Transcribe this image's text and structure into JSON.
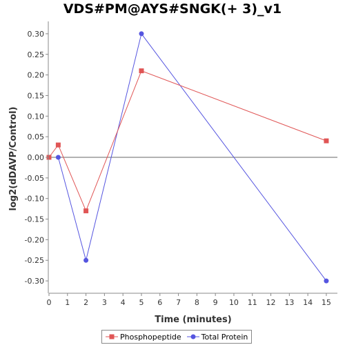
{
  "chart_data": {
    "type": "line",
    "title": "VDS#PM@AYS#SNGK(+ 3)_v1",
    "xlabel": "Time (minutes)",
    "ylabel": "log2(dDAVP/Control)",
    "xlim": [
      0,
      15.6
    ],
    "ylim": [
      -0.33,
      0.33
    ],
    "x_ticks": [
      0,
      1,
      2,
      3,
      4,
      5,
      6,
      7,
      8,
      9,
      10,
      11,
      12,
      13,
      14,
      15
    ],
    "y_ticks": [
      0.3,
      0.25,
      0.2,
      0.15,
      0.1,
      0.05,
      0.0,
      -0.05,
      -0.1,
      -0.15,
      -0.2,
      -0.25,
      -0.3
    ],
    "y_tick_labels": [
      "0.30",
      "0.25",
      "0.20",
      "0.15",
      "0.10",
      "0.05",
      "0.00",
      "-0.05",
      "-0.10",
      "-0.15",
      "-0.20",
      "-0.25",
      "-0.30"
    ],
    "grid": false,
    "zero_line": true,
    "legend_position": "bottom",
    "series": [
      {
        "name": "Phosphopeptide",
        "color": "#e05555",
        "marker": "square",
        "x": [
          0,
          0.5,
          2,
          5,
          15
        ],
        "y": [
          0.0,
          0.03,
          -0.13,
          0.21,
          0.04
        ]
      },
      {
        "name": "Total Protein",
        "color": "#5555e0",
        "marker": "circle",
        "x": [
          0.5,
          2,
          5,
          15
        ],
        "y": [
          0.0,
          -0.25,
          0.3,
          -0.3
        ]
      }
    ]
  }
}
